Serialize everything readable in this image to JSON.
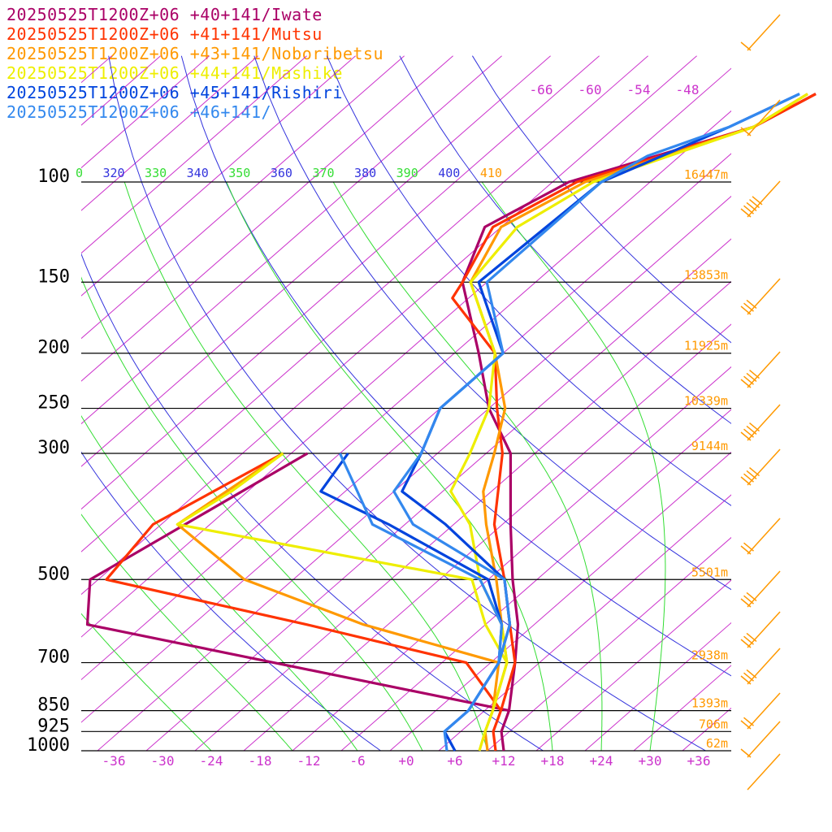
{
  "chart_data": {
    "type": "line",
    "title": "",
    "xlabel": "",
    "ylabel": "",
    "colors": {
      "isobar": "#000000",
      "isotherm": "#cc33cc",
      "dry_adiabat": "#3333dd",
      "moist_adiabat": "#33dd33",
      "height_label": "#ff9900",
      "wind_barb": "#ff9900"
    },
    "pressure_levels": [
      "100",
      "150",
      "200",
      "250",
      "300",
      "500",
      "700",
      "850",
      "925",
      "1000"
    ],
    "pressure_values": [
      100,
      150,
      200,
      250,
      300,
      500,
      700,
      850,
      925,
      1000
    ],
    "temperature_ticks": [
      "-36",
      "-30",
      "-24",
      "-18",
      "-12",
      "-6",
      "+0",
      "+6",
      "+12",
      "+18",
      "+24",
      "+30",
      "+36"
    ],
    "upper_isotherm_labels": [
      "-66",
      "-60",
      "-54",
      "-48"
    ],
    "upper_isotherm_values": [
      -66,
      -60,
      -54,
      -48
    ],
    "theta_labels": [
      {
        "text": "0",
        "color": "#33dd33"
      },
      {
        "text": "320",
        "color": "#3333dd"
      },
      {
        "text": "330",
        "color": "#33dd33"
      },
      {
        "text": "340",
        "color": "#3333dd"
      },
      {
        "text": "350",
        "color": "#33dd33"
      },
      {
        "text": "360",
        "color": "#3333dd"
      },
      {
        "text": "370",
        "color": "#33dd33"
      },
      {
        "text": "380",
        "color": "#3333dd"
      },
      {
        "text": "390",
        "color": "#33dd33"
      },
      {
        "text": "400",
        "color": "#3333dd"
      },
      {
        "text": "410",
        "color": "#ff9900"
      }
    ],
    "height_labels": [
      {
        "p": 100,
        "text": "16447m"
      },
      {
        "p": 150,
        "text": "13853m"
      },
      {
        "p": 200,
        "text": "11925m"
      },
      {
        "p": 250,
        "text": "10339m"
      },
      {
        "p": 300,
        "text": "9144m"
      },
      {
        "p": 500,
        "text": "5501m"
      },
      {
        "p": 700,
        "text": "2938m"
      },
      {
        "p": 850,
        "text": "1393m"
      },
      {
        "p": 925,
        "text": "706m"
      },
      {
        "p": 1000,
        "text": "62m"
      }
    ],
    "x_range_at_1000hPa": [
      -40,
      40
    ],
    "pressure_range": [
      70,
      1000
    ],
    "series": [
      {
        "name": "20250525T1200Z+06 +40+141/Iwate",
        "color": "#aa0066",
        "temperature": [
          [
            70,
            -42
          ],
          [
            80,
            -45
          ],
          [
            100,
            -60
          ],
          [
            120,
            -64
          ],
          [
            150,
            -59
          ],
          [
            200,
            -47
          ],
          [
            250,
            -38
          ],
          [
            300,
            -29
          ],
          [
            400,
            -19
          ],
          [
            500,
            -11
          ],
          [
            600,
            -4
          ],
          [
            700,
            1
          ],
          [
            850,
            7
          ],
          [
            925,
            9
          ],
          [
            1000,
            12
          ]
        ],
        "dewpoint": [
          [
            300,
            -54
          ],
          [
            500,
            -63
          ],
          [
            600,
            -57
          ],
          [
            850,
            7
          ]
        ]
      },
      {
        "name": "20250525T1200Z+06 +41+141/Mutsu",
        "color": "#ff3300",
        "temperature": [
          [
            70,
            -42
          ],
          [
            80,
            -45
          ],
          [
            100,
            -59
          ],
          [
            120,
            -63
          ],
          [
            150,
            -59
          ],
          [
            160,
            -58
          ],
          [
            200,
            -45
          ],
          [
            250,
            -37
          ],
          [
            300,
            -30
          ],
          [
            400,
            -21
          ],
          [
            500,
            -12
          ],
          [
            600,
            -5
          ],
          [
            700,
            1
          ],
          [
            850,
            6
          ],
          [
            925,
            8
          ],
          [
            1000,
            11
          ]
        ],
        "dewpoint": [
          [
            300,
            -57
          ],
          [
            400,
            -63
          ],
          [
            500,
            -61
          ],
          [
            600,
            -30
          ],
          [
            700,
            -5
          ],
          [
            850,
            6
          ]
        ]
      },
      {
        "name": "20250525T1200Z+06 +43+141/Noboribetsu",
        "color": "#ff9900",
        "temperature": [
          [
            70,
            -43
          ],
          [
            80,
            -45
          ],
          [
            100,
            -58
          ],
          [
            120,
            -62
          ],
          [
            150,
            -58
          ],
          [
            200,
            -45
          ],
          [
            250,
            -36
          ],
          [
            300,
            -31
          ],
          [
            350,
            -27
          ],
          [
            400,
            -22
          ],
          [
            500,
            -13
          ],
          [
            600,
            -6
          ],
          [
            700,
            0
          ],
          [
            850,
            5
          ],
          [
            925,
            7
          ],
          [
            1000,
            10
          ]
        ],
        "dewpoint": [
          [
            300,
            -57
          ],
          [
            400,
            -60
          ],
          [
            500,
            -44
          ],
          [
            600,
            -23
          ],
          [
            700,
            -1
          ],
          [
            850,
            5
          ]
        ]
      },
      {
        "name": "20250525T1200Z+06 +44+141/Mashike",
        "color": "#eeee00",
        "temperature": [
          [
            70,
            -43
          ],
          [
            80,
            -45
          ],
          [
            100,
            -57
          ],
          [
            120,
            -60
          ],
          [
            150,
            -58
          ],
          [
            200,
            -45
          ],
          [
            250,
            -38
          ],
          [
            300,
            -34
          ],
          [
            350,
            -31
          ],
          [
            400,
            -24
          ],
          [
            500,
            -15
          ],
          [
            600,
            -6
          ],
          [
            700,
            0
          ],
          [
            850,
            5
          ],
          [
            925,
            7
          ],
          [
            1000,
            9
          ]
        ],
        "dewpoint": [
          [
            300,
            -57
          ],
          [
            350,
            -58
          ],
          [
            400,
            -60
          ],
          [
            500,
            -16
          ],
          [
            600,
            -8
          ],
          [
            700,
            0
          ]
        ]
      },
      {
        "name": "20250525T1200Z+06 +45+141/Rishiri",
        "color": "#0044dd",
        "temperature": [
          [
            70,
            -44
          ],
          [
            80,
            -48
          ],
          [
            100,
            -56
          ],
          [
            150,
            -57
          ],
          [
            200,
            -44
          ],
          [
            250,
            -44
          ],
          [
            300,
            -40
          ],
          [
            350,
            -37
          ],
          [
            400,
            -27
          ],
          [
            500,
            -12
          ],
          [
            600,
            -5
          ],
          [
            700,
            -1
          ],
          [
            850,
            2
          ],
          [
            925,
            2
          ],
          [
            1000,
            6
          ]
        ],
        "dewpoint": [
          [
            300,
            -49
          ],
          [
            350,
            -47
          ],
          [
            400,
            -34
          ],
          [
            500,
            -14
          ],
          [
            600,
            -6
          ],
          [
            700,
            -1
          ]
        ]
      },
      {
        "name": "20250525T1200Z+06 +46+141/",
        "color": "#3388ee",
        "temperature": [
          [
            70,
            -44
          ],
          [
            80,
            -48
          ],
          [
            90,
            -54
          ],
          [
            100,
            -56
          ],
          [
            150,
            -56
          ],
          [
            200,
            -44
          ],
          [
            250,
            -44
          ],
          [
            300,
            -40
          ],
          [
            350,
            -38
          ],
          [
            400,
            -31
          ],
          [
            500,
            -12
          ],
          [
            600,
            -5
          ],
          [
            700,
            -1
          ],
          [
            850,
            2
          ],
          [
            925,
            2
          ],
          [
            1000,
            5
          ]
        ],
        "dewpoint": [
          [
            300,
            -50
          ],
          [
            400,
            -36
          ],
          [
            500,
            -15
          ],
          [
            600,
            -6
          ],
          [
            700,
            -1
          ]
        ]
      }
    ]
  }
}
